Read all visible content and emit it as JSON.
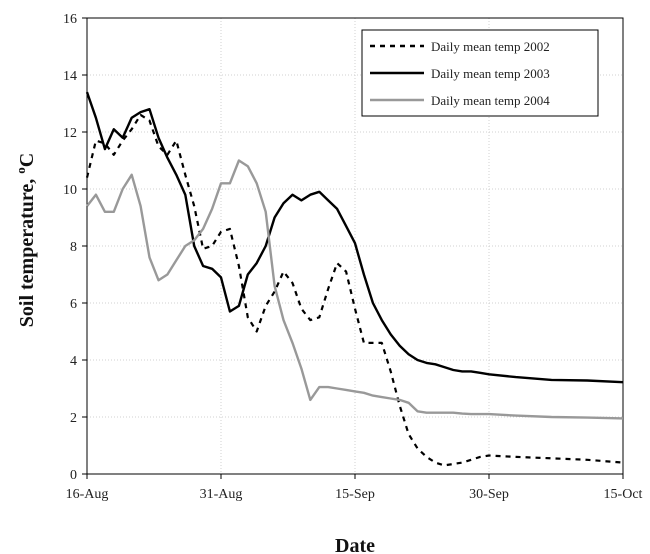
{
  "chart_data": {
    "type": "line",
    "xlabel": "Date",
    "ylabel": "Soil temperature, ",
    "ylabel_sup": "o",
    "ylabel_unit": "C",
    "ylim": [
      0,
      16
    ],
    "yticks": [
      0,
      2,
      4,
      6,
      8,
      10,
      12,
      14,
      16
    ],
    "xlim": [
      "2003-08-16",
      "2003-10-15"
    ],
    "xticks": [
      {
        "date": "2003-08-16",
        "label": "16-Aug"
      },
      {
        "date": "2003-08-31",
        "label": "31-Aug"
      },
      {
        "date": "2003-09-15",
        "label": "15-Sep"
      },
      {
        "date": "2003-09-30",
        "label": "30-Sep"
      },
      {
        "date": "2003-10-15",
        "label": "15-Oct"
      }
    ],
    "grid": true,
    "legend_position": "top-right",
    "series": [
      {
        "name": "Daily mean temp 2002",
        "style": "dashed",
        "color": "#000000",
        "points": [
          [
            "2003-08-16",
            10.4
          ],
          [
            "2003-08-17",
            11.7
          ],
          [
            "2003-08-18",
            11.6
          ],
          [
            "2003-08-19",
            11.2
          ],
          [
            "2003-08-20",
            11.7
          ],
          [
            "2003-08-21",
            12.1
          ],
          [
            "2003-08-22",
            12.6
          ],
          [
            "2003-08-23",
            12.4
          ],
          [
            "2003-08-24",
            11.5
          ],
          [
            "2003-08-25",
            11.2
          ],
          [
            "2003-08-26",
            11.7
          ],
          [
            "2003-08-27",
            10.5
          ],
          [
            "2003-08-28",
            9.4
          ],
          [
            "2003-08-29",
            7.9
          ],
          [
            "2003-08-30",
            8.0
          ],
          [
            "2003-08-31",
            8.5
          ],
          [
            "2003-09-01",
            8.6
          ],
          [
            "2003-09-02",
            7.3
          ],
          [
            "2003-09-03",
            5.5
          ],
          [
            "2003-09-04",
            5.0
          ],
          [
            "2003-09-05",
            5.9
          ],
          [
            "2003-09-06",
            6.4
          ],
          [
            "2003-09-07",
            7.1
          ],
          [
            "2003-09-08",
            6.7
          ],
          [
            "2003-09-09",
            5.8
          ],
          [
            "2003-09-10",
            5.4
          ],
          [
            "2003-09-11",
            5.5
          ],
          [
            "2003-09-12",
            6.5
          ],
          [
            "2003-09-13",
            7.4
          ],
          [
            "2003-09-14",
            7.1
          ],
          [
            "2003-09-15",
            5.8
          ],
          [
            "2003-09-16",
            4.6
          ],
          [
            "2003-09-17",
            4.6
          ],
          [
            "2003-09-18",
            4.6
          ],
          [
            "2003-09-19",
            3.6
          ],
          [
            "2003-09-20",
            2.4
          ],
          [
            "2003-09-21",
            1.4
          ],
          [
            "2003-09-22",
            0.9
          ],
          [
            "2003-09-23",
            0.6
          ],
          [
            "2003-09-24",
            0.4
          ],
          [
            "2003-09-25",
            0.3
          ],
          [
            "2003-09-26",
            0.35
          ],
          [
            "2003-09-27",
            0.4
          ],
          [
            "2003-09-28",
            0.5
          ],
          [
            "2003-09-29",
            0.6
          ],
          [
            "2003-09-30",
            0.65
          ],
          [
            "2003-10-03",
            0.6
          ],
          [
            "2003-10-07",
            0.55
          ],
          [
            "2003-10-11",
            0.5
          ],
          [
            "2003-10-15",
            0.4
          ]
        ]
      },
      {
        "name": "Daily mean temp 2003",
        "style": "solid",
        "color": "#000000",
        "points": [
          [
            "2003-08-16",
            13.4
          ],
          [
            "2003-08-17",
            12.5
          ],
          [
            "2003-08-18",
            11.4
          ],
          [
            "2003-08-19",
            12.1
          ],
          [
            "2003-08-20",
            11.8
          ],
          [
            "2003-08-21",
            12.5
          ],
          [
            "2003-08-22",
            12.7
          ],
          [
            "2003-08-23",
            12.8
          ],
          [
            "2003-08-24",
            11.8
          ],
          [
            "2003-08-25",
            11.1
          ],
          [
            "2003-08-26",
            10.5
          ],
          [
            "2003-08-27",
            9.8
          ],
          [
            "2003-08-28",
            8.0
          ],
          [
            "2003-08-29",
            7.3
          ],
          [
            "2003-08-30",
            7.2
          ],
          [
            "2003-08-31",
            6.9
          ],
          [
            "2003-09-01",
            5.7
          ],
          [
            "2003-09-02",
            5.9
          ],
          [
            "2003-09-03",
            7.0
          ],
          [
            "2003-09-04",
            7.4
          ],
          [
            "2003-09-05",
            8.0
          ],
          [
            "2003-09-06",
            9.0
          ],
          [
            "2003-09-07",
            9.5
          ],
          [
            "2003-09-08",
            9.8
          ],
          [
            "2003-09-09",
            9.6
          ],
          [
            "2003-09-10",
            9.8
          ],
          [
            "2003-09-11",
            9.9
          ],
          [
            "2003-09-12",
            9.6
          ],
          [
            "2003-09-13",
            9.3
          ],
          [
            "2003-09-14",
            8.7
          ],
          [
            "2003-09-15",
            8.1
          ],
          [
            "2003-09-16",
            7.0
          ],
          [
            "2003-09-17",
            6.0
          ],
          [
            "2003-09-18",
            5.4
          ],
          [
            "2003-09-19",
            4.9
          ],
          [
            "2003-09-20",
            4.5
          ],
          [
            "2003-09-21",
            4.2
          ],
          [
            "2003-09-22",
            4.0
          ],
          [
            "2003-09-23",
            3.9
          ],
          [
            "2003-09-24",
            3.85
          ],
          [
            "2003-09-25",
            3.75
          ],
          [
            "2003-09-26",
            3.65
          ],
          [
            "2003-09-27",
            3.6
          ],
          [
            "2003-09-28",
            3.6
          ],
          [
            "2003-09-29",
            3.55
          ],
          [
            "2003-09-30",
            3.5
          ],
          [
            "2003-10-03",
            3.4
          ],
          [
            "2003-10-07",
            3.3
          ],
          [
            "2003-10-11",
            3.28
          ],
          [
            "2003-10-15",
            3.22
          ]
        ]
      },
      {
        "name": "Daily mean temp 2004",
        "style": "solid",
        "color": "#999999",
        "points": [
          [
            "2003-08-16",
            9.4
          ],
          [
            "2003-08-17",
            9.8
          ],
          [
            "2003-08-18",
            9.2
          ],
          [
            "2003-08-19",
            9.2
          ],
          [
            "2003-08-20",
            10.0
          ],
          [
            "2003-08-21",
            10.5
          ],
          [
            "2003-08-22",
            9.4
          ],
          [
            "2003-08-23",
            7.6
          ],
          [
            "2003-08-24",
            6.8
          ],
          [
            "2003-08-25",
            7.0
          ],
          [
            "2003-08-26",
            7.5
          ],
          [
            "2003-08-27",
            8.0
          ],
          [
            "2003-08-28",
            8.2
          ],
          [
            "2003-08-29",
            8.6
          ],
          [
            "2003-08-30",
            9.3
          ],
          [
            "2003-08-31",
            10.2
          ],
          [
            "2003-09-01",
            10.2
          ],
          [
            "2003-09-02",
            11.0
          ],
          [
            "2003-09-03",
            10.8
          ],
          [
            "2003-09-04",
            10.2
          ],
          [
            "2003-09-05",
            9.2
          ],
          [
            "2003-09-06",
            6.6
          ],
          [
            "2003-09-07",
            5.4
          ],
          [
            "2003-09-08",
            4.6
          ],
          [
            "2003-09-09",
            3.7
          ],
          [
            "2003-09-10",
            2.6
          ],
          [
            "2003-09-11",
            3.05
          ],
          [
            "2003-09-12",
            3.05
          ],
          [
            "2003-09-13",
            3.0
          ],
          [
            "2003-09-14",
            2.95
          ],
          [
            "2003-09-15",
            2.9
          ],
          [
            "2003-09-16",
            2.85
          ],
          [
            "2003-09-17",
            2.75
          ],
          [
            "2003-09-18",
            2.7
          ],
          [
            "2003-09-19",
            2.65
          ],
          [
            "2003-09-20",
            2.6
          ],
          [
            "2003-09-21",
            2.5
          ],
          [
            "2003-09-22",
            2.2
          ],
          [
            "2003-09-23",
            2.15
          ],
          [
            "2003-09-24",
            2.15
          ],
          [
            "2003-09-25",
            2.15
          ],
          [
            "2003-09-26",
            2.15
          ],
          [
            "2003-09-27",
            2.12
          ],
          [
            "2003-09-28",
            2.1
          ],
          [
            "2003-09-29",
            2.1
          ],
          [
            "2003-09-30",
            2.1
          ],
          [
            "2003-10-03",
            2.05
          ],
          [
            "2003-10-07",
            2.0
          ],
          [
            "2003-10-11",
            1.98
          ],
          [
            "2003-10-15",
            1.95
          ]
        ]
      }
    ]
  }
}
